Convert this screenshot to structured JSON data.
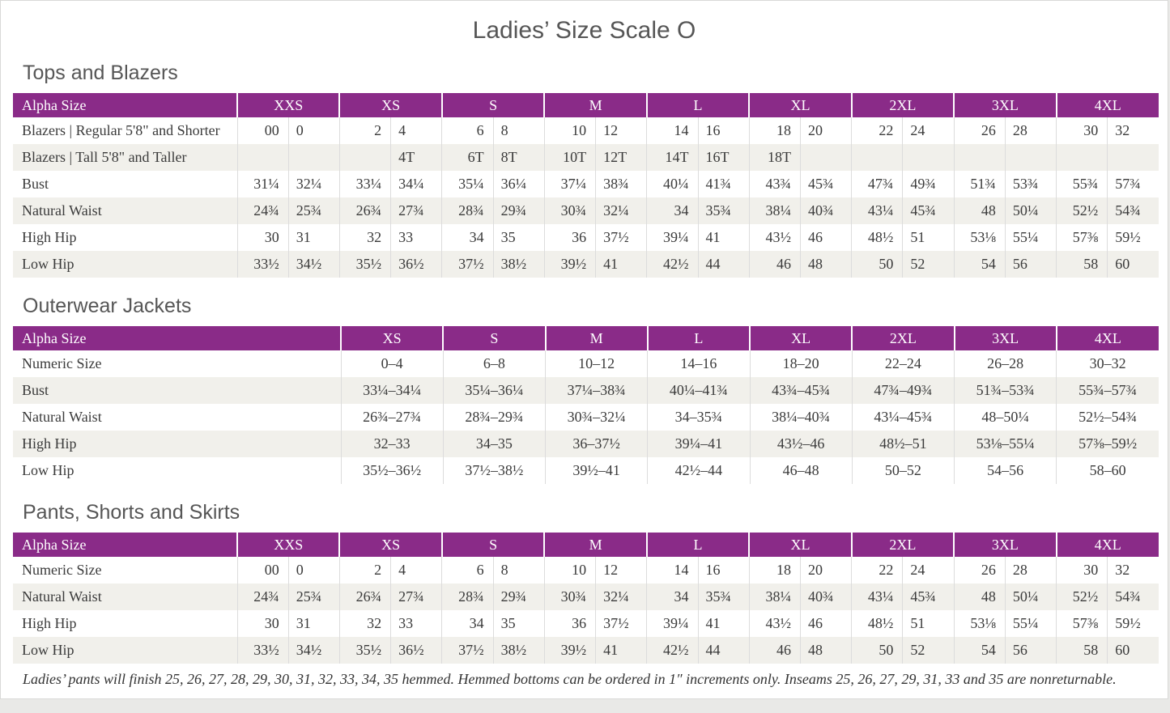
{
  "page_title": "Ladies’ Size Scale O",
  "colors": {
    "header_bg": "#8a2b88",
    "header_text": "#ffffff",
    "row_stripe": "#f1f0eb",
    "body_text": "#3a3a3a",
    "heading_text": "#565656"
  },
  "sections": [
    {
      "heading": "Tops and Blazers",
      "type": "paired",
      "label_header": "Alpha Size",
      "sizes": [
        "XXS",
        "XS",
        "S",
        "M",
        "L",
        "XL",
        "2XL",
        "3XL",
        "4XL"
      ],
      "rows": [
        {
          "label": "Blazers | Regular 5'8\" and Shorter",
          "values": [
            [
              "00",
              "0"
            ],
            [
              "2",
              "4"
            ],
            [
              "6",
              "8"
            ],
            [
              "10",
              "12"
            ],
            [
              "14",
              "16"
            ],
            [
              "18",
              "20"
            ],
            [
              "22",
              "24"
            ],
            [
              "26",
              "28"
            ],
            [
              "30",
              "32"
            ]
          ]
        },
        {
          "label": "Blazers | Tall 5'8\" and Taller",
          "values": [
            [
              "",
              ""
            ],
            [
              "",
              "4T"
            ],
            [
              "6T",
              "8T"
            ],
            [
              "10T",
              "12T"
            ],
            [
              "14T",
              "16T"
            ],
            [
              "18T",
              ""
            ],
            [
              "",
              ""
            ],
            [
              "",
              ""
            ],
            [
              "",
              ""
            ]
          ]
        },
        {
          "label": "Bust",
          "values": [
            [
              "31¼",
              "32¼"
            ],
            [
              "33¼",
              "34¼"
            ],
            [
              "35¼",
              "36¼"
            ],
            [
              "37¼",
              "38¾"
            ],
            [
              "40¼",
              "41¾"
            ],
            [
              "43¾",
              "45¾"
            ],
            [
              "47¾",
              "49¾"
            ],
            [
              "51¾",
              "53¾"
            ],
            [
              "55¾",
              "57¾"
            ]
          ]
        },
        {
          "label": "Natural Waist",
          "values": [
            [
              "24¾",
              "25¾"
            ],
            [
              "26¾",
              "27¾"
            ],
            [
              "28¾",
              "29¾"
            ],
            [
              "30¾",
              "32¼"
            ],
            [
              "34",
              "35¾"
            ],
            [
              "38¼",
              "40¾"
            ],
            [
              "43¼",
              "45¾"
            ],
            [
              "48",
              "50¼"
            ],
            [
              "52½",
              "54¾"
            ]
          ]
        },
        {
          "label": "High Hip",
          "values": [
            [
              "30",
              "31"
            ],
            [
              "32",
              "33"
            ],
            [
              "34",
              "35"
            ],
            [
              "36",
              "37½"
            ],
            [
              "39¼",
              "41"
            ],
            [
              "43½",
              "46"
            ],
            [
              "48½",
              "51"
            ],
            [
              "53⅛",
              "55¼"
            ],
            [
              "57⅜",
              "59½"
            ]
          ]
        },
        {
          "label": "Low Hip",
          "values": [
            [
              "33½",
              "34½"
            ],
            [
              "35½",
              "36½"
            ],
            [
              "37½",
              "38½"
            ],
            [
              "39½",
              "41"
            ],
            [
              "42½",
              "44"
            ],
            [
              "46",
              "48"
            ],
            [
              "50",
              "52"
            ],
            [
              "54",
              "56"
            ],
            [
              "58",
              "60"
            ]
          ]
        }
      ]
    },
    {
      "heading": "Outerwear Jackets",
      "type": "single",
      "label_header": "Alpha Size",
      "sizes": [
        "XS",
        "S",
        "M",
        "L",
        "XL",
        "2XL",
        "3XL",
        "4XL"
      ],
      "rows": [
        {
          "label": "Numeric Size",
          "values": [
            "0–4",
            "6–8",
            "10–12",
            "14–16",
            "18–20",
            "22–24",
            "26–28",
            "30–32"
          ]
        },
        {
          "label": "Bust",
          "values": [
            "33¼–34¼",
            "35¼–36¼",
            "37¼–38¾",
            "40¼–41¾",
            "43¾–45¾",
            "47¾–49¾",
            "51¾–53¾",
            "55¾–57¾"
          ]
        },
        {
          "label": "Natural Waist",
          "values": [
            "26¾–27¾",
            "28¾–29¾",
            "30¾–32¼",
            "34–35¾",
            "38¼–40¾",
            "43¼–45¾",
            "48–50¼",
            "52½–54¾"
          ]
        },
        {
          "label": "High Hip",
          "values": [
            "32–33",
            "34–35",
            "36–37½",
            "39¼–41",
            "43½–46",
            "48½–51",
            "53⅛–55¼",
            "57⅜–59½"
          ]
        },
        {
          "label": "Low Hip",
          "values": [
            "35½–36½",
            "37½–38½",
            "39½–41",
            "42½–44",
            "46–48",
            "50–52",
            "54–56",
            "58–60"
          ]
        }
      ]
    },
    {
      "heading": "Pants, Shorts and Skirts",
      "type": "paired",
      "label_header": "Alpha Size",
      "sizes": [
        "XXS",
        "XS",
        "S",
        "M",
        "L",
        "XL",
        "2XL",
        "3XL",
        "4XL"
      ],
      "rows": [
        {
          "label": "Numeric Size",
          "values": [
            [
              "00",
              "0"
            ],
            [
              "2",
              "4"
            ],
            [
              "6",
              "8"
            ],
            [
              "10",
              "12"
            ],
            [
              "14",
              "16"
            ],
            [
              "18",
              "20"
            ],
            [
              "22",
              "24"
            ],
            [
              "26",
              "28"
            ],
            [
              "30",
              "32"
            ]
          ]
        },
        {
          "label": "Natural Waist",
          "values": [
            [
              "24¾",
              "25¾"
            ],
            [
              "26¾",
              "27¾"
            ],
            [
              "28¾",
              "29¾"
            ],
            [
              "30¾",
              "32¼"
            ],
            [
              "34",
              "35¾"
            ],
            [
              "38¼",
              "40¾"
            ],
            [
              "43¼",
              "45¾"
            ],
            [
              "48",
              "50¼"
            ],
            [
              "52½",
              "54¾"
            ]
          ]
        },
        {
          "label": "High Hip",
          "values": [
            [
              "30",
              "31"
            ],
            [
              "32",
              "33"
            ],
            [
              "34",
              "35"
            ],
            [
              "36",
              "37½"
            ],
            [
              "39¼",
              "41"
            ],
            [
              "43½",
              "46"
            ],
            [
              "48½",
              "51"
            ],
            [
              "53⅛",
              "55¼"
            ],
            [
              "57⅜",
              "59½"
            ]
          ]
        },
        {
          "label": "Low Hip",
          "values": [
            [
              "33½",
              "34½"
            ],
            [
              "35½",
              "36½"
            ],
            [
              "37½",
              "38½"
            ],
            [
              "39½",
              "41"
            ],
            [
              "42½",
              "44"
            ],
            [
              "46",
              "48"
            ],
            [
              "50",
              "52"
            ],
            [
              "54",
              "56"
            ],
            [
              "58",
              "60"
            ]
          ]
        }
      ]
    }
  ],
  "footnote": "Ladies’ pants will finish 25, 26, 27, 28, 29, 30, 31, 32, 33, 34, 35 hemmed. Hemmed bottoms can be ordered in 1″ increments only. Inseams 25, 26, 27, 29, 31, 33 and 35 are nonreturnable."
}
